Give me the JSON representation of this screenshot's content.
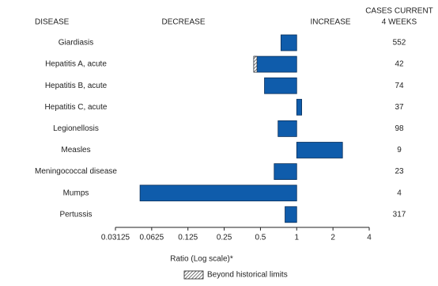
{
  "chart_data": {
    "type": "bar",
    "orientation": "horizontal",
    "log_scale": true,
    "log_base": 2,
    "column_header": "DISEASE",
    "decrease_label": "DECREASE",
    "increase_label": "INCREASE",
    "cases_header": [
      "CASES CURRENT",
      "4 WEEKS"
    ],
    "categories": [
      "Giardiasis",
      "Hepatitis A, acute",
      "Hepatitis B, acute",
      "Hepatitis C, acute",
      "Legionellosis",
      "Measles",
      "Meningococcal disease",
      "Mumps",
      "Pertussis"
    ],
    "values": [
      0.74,
      0.44,
      0.54,
      1.1,
      0.7,
      2.4,
      0.65,
      0.05,
      0.8
    ],
    "beyond_limits": [
      false,
      true,
      false,
      false,
      false,
      false,
      false,
      false,
      false
    ],
    "cases": [
      552,
      42,
      74,
      37,
      98,
      9,
      23,
      4,
      317
    ],
    "color": "#0f5cab",
    "xlim": [
      0.03125,
      4
    ],
    "xticks": [
      0.03125,
      0.0625,
      0.125,
      0.25,
      0.5,
      1,
      2,
      4
    ],
    "xlabel": "Ratio (Log scale)*",
    "legend_label": "Beyond historical limits"
  }
}
